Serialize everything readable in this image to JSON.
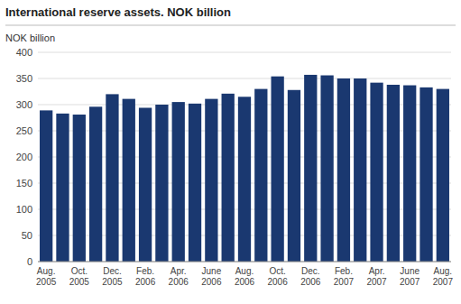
{
  "chart_data": {
    "type": "bar",
    "title": "International reserve assets. NOK billion",
    "y_label": "NOK billion",
    "color": "#1a3870",
    "categories": [
      "Aug.\n2005",
      null,
      "Oct.\n2005",
      null,
      "Dec.\n2005",
      null,
      "Feb.\n2006",
      null,
      "Apr.\n2006",
      null,
      "June\n2006",
      null,
      "Aug.\n2006",
      null,
      "Oct.\n2006",
      null,
      "Dec.\n2006",
      null,
      "Feb.\n2007",
      null,
      "Apr.\n2007",
      null,
      "June\n2007",
      null,
      "Aug.\n2007"
    ],
    "values": [
      289,
      283,
      281,
      296,
      320,
      311,
      294,
      300,
      305,
      302,
      311,
      321,
      315,
      330,
      354,
      328,
      357,
      356,
      350,
      350,
      342,
      338,
      337,
      333,
      330
    ],
    "ylim": [
      0,
      400
    ],
    "yticks": [
      0,
      50,
      100,
      150,
      200,
      250,
      300,
      350,
      400
    ],
    "grid": true
  }
}
